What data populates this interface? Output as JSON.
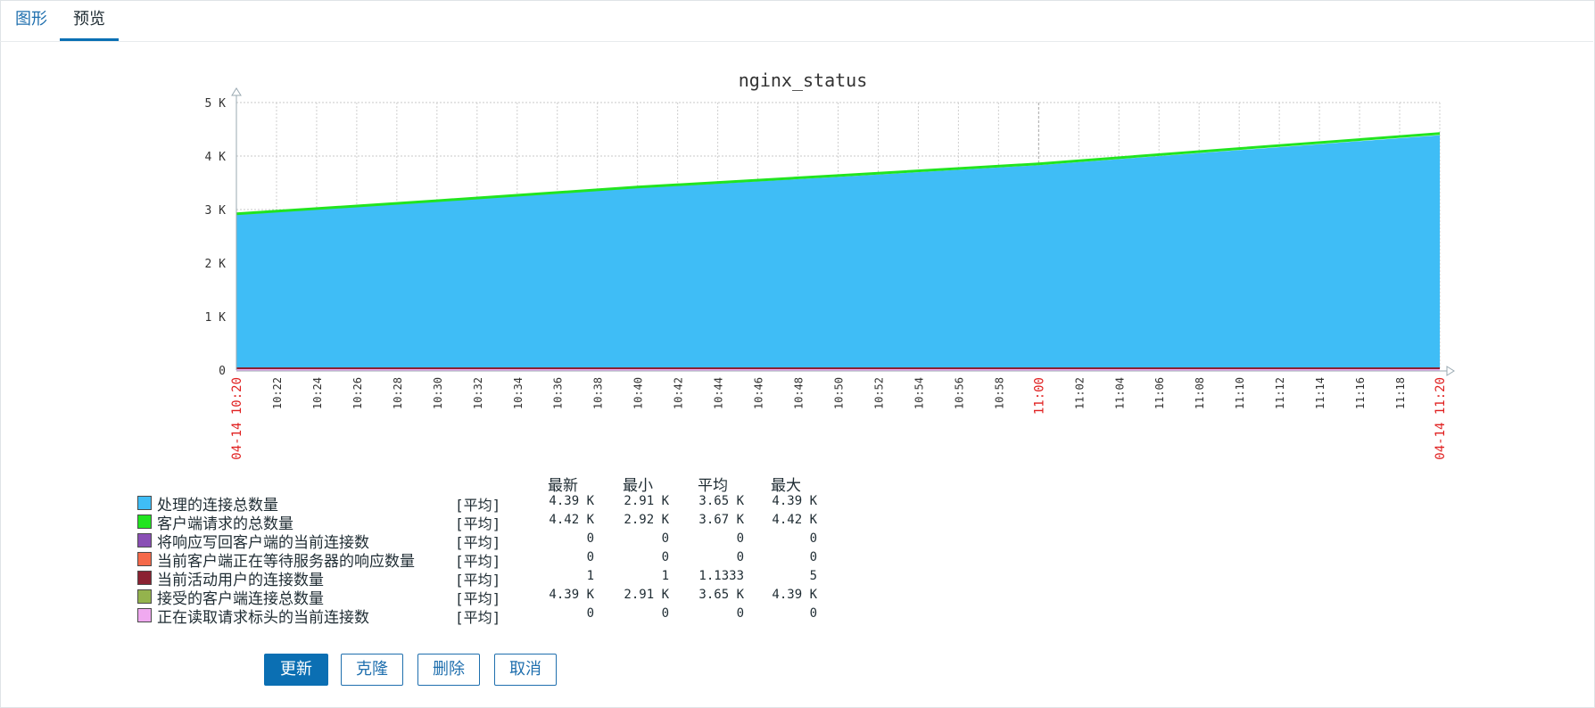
{
  "tabs": [
    {
      "label": "图形",
      "active": false
    },
    {
      "label": "预览",
      "active": true
    }
  ],
  "chart_data": {
    "type": "area",
    "title": "nginx_status",
    "x_unit": "time",
    "x_range": [
      "04-14 10:20",
      "04-14 11:20"
    ],
    "x_tick_labels": [
      "10:22",
      "10:24",
      "10:26",
      "10:28",
      "10:30",
      "10:32",
      "10:34",
      "10:36",
      "10:38",
      "10:40",
      "10:42",
      "10:44",
      "10:46",
      "10:48",
      "10:50",
      "10:52",
      "10:54",
      "10:56",
      "10:58",
      "11:00",
      "11:02",
      "11:04",
      "11:06",
      "11:08",
      "11:10",
      "11:12",
      "11:14",
      "11:16",
      "11:18"
    ],
    "x_edge_labels": [
      "04-14 10:20",
      "04-14 11:20"
    ],
    "highlight_tick": "11:00",
    "y_tick_labels": [
      "0",
      "1 K",
      "2 K",
      "3 K",
      "4 K",
      "5 K"
    ],
    "ylim": [
      0,
      5000
    ],
    "grid": true,
    "x_minutes": [
      0,
      10,
      20,
      30,
      40,
      50,
      60
    ],
    "series": [
      {
        "name": "处理的连接总数量",
        "color": "#3fbdf6",
        "values": [
          2910,
          3150,
          3400,
          3610,
          3830,
          4110,
          4390
        ]
      },
      {
        "name": "客户端请求的总数量",
        "color": "#21e420",
        "values": [
          2920,
          3165,
          3420,
          3635,
          3855,
          4140,
          4420
        ]
      },
      {
        "name": "将响应写回客户端的当前连接数",
        "color": "#8a4fb5",
        "values": [
          0,
          0,
          0,
          0,
          0,
          0,
          0
        ]
      },
      {
        "name": "当前客户端正在等待服务器的响应数量",
        "color": "#f5694a",
        "values": [
          0,
          0,
          0,
          0,
          0,
          0,
          0
        ]
      },
      {
        "name": "当前活动用户的连接数量",
        "color": "#8b2232",
        "values": [
          1,
          1,
          1,
          1,
          1,
          1,
          1
        ]
      },
      {
        "name": "接受的客户端连接总数量",
        "color": "#94b34d",
        "values": [
          2910,
          3150,
          3400,
          3610,
          3830,
          4110,
          4390
        ]
      },
      {
        "name": "正在读取请求标头的当前连接数",
        "color": "#f0a9f0",
        "values": [
          0,
          0,
          0,
          0,
          0,
          0,
          0
        ]
      }
    ]
  },
  "legend": {
    "headers": {
      "latest": "最新",
      "min": "最小",
      "avg": "平均",
      "max": "最大"
    },
    "rows": [
      {
        "color": "#3fbdf6",
        "name": "处理的连接总数量",
        "func": "[平均]",
        "latest": "4.39 K",
        "min": "2.91 K",
        "avg": "3.65 K",
        "max": "4.39 K"
      },
      {
        "color": "#21e420",
        "name": "客户端请求的总数量",
        "func": "[平均]",
        "latest": "4.42 K",
        "min": "2.92 K",
        "avg": "3.67 K",
        "max": "4.42 K"
      },
      {
        "color": "#8a4fb5",
        "name": "将响应写回客户端的当前连接数",
        "func": "[平均]",
        "latest": "0",
        "min": "0",
        "avg": "0",
        "max": "0"
      },
      {
        "color": "#f5694a",
        "name": "当前客户端正在等待服务器的响应数量",
        "func": "[平均]",
        "latest": "0",
        "min": "0",
        "avg": "0",
        "max": "0"
      },
      {
        "color": "#8b2232",
        "name": "当前活动用户的连接数量",
        "func": "[平均]",
        "latest": "1",
        "min": "1",
        "avg": "1.1333",
        "max": "5"
      },
      {
        "color": "#94b34d",
        "name": "接受的客户端连接总数量",
        "func": "[平均]",
        "latest": "4.39 K",
        "min": "2.91 K",
        "avg": "3.65 K",
        "max": "4.39 K"
      },
      {
        "color": "#f0a9f0",
        "name": "正在读取请求标头的当前连接数",
        "func": "[平均]",
        "latest": "0",
        "min": "0",
        "avg": "0",
        "max": "0"
      }
    ]
  },
  "buttons": {
    "update": "更新",
    "clone": "克隆",
    "delete": "删除",
    "cancel": "取消"
  }
}
